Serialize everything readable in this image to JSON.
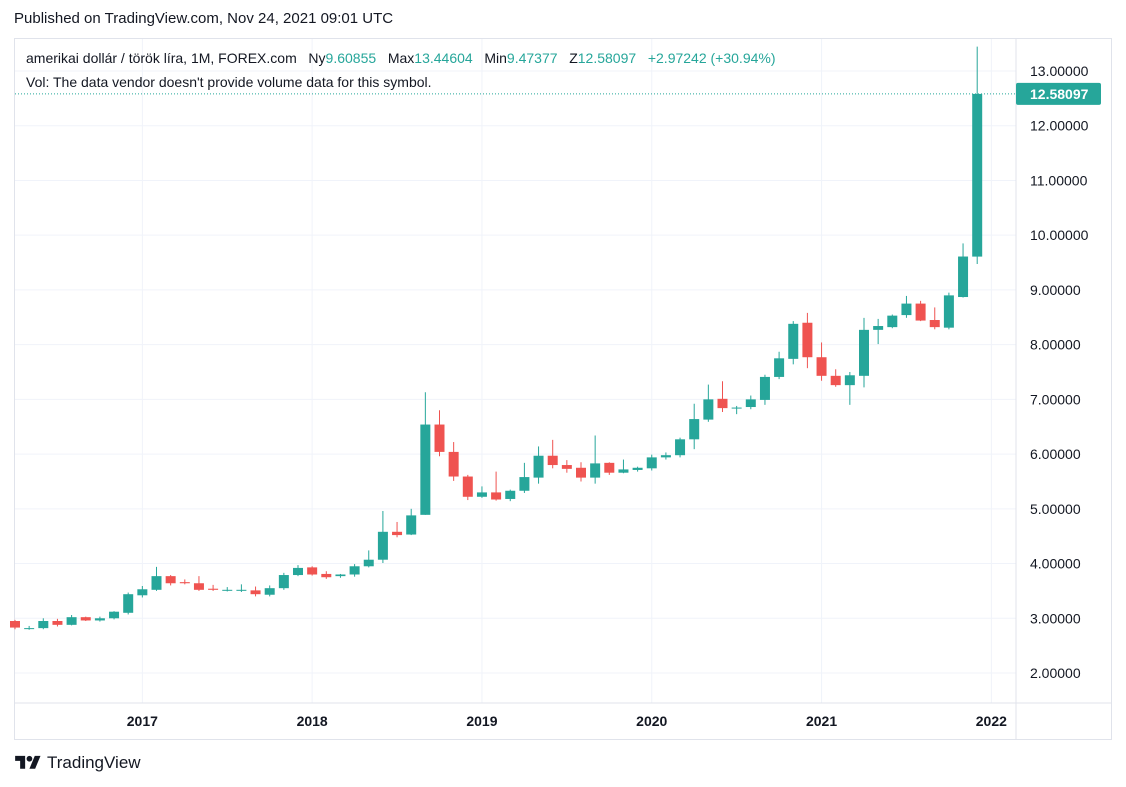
{
  "published": "Published on TradingView.com, Nov 24, 2021 09:01 UTC",
  "legend": {
    "symbol": "amerikai dollár / török líra, 1M, FOREX.com",
    "open_label": "Ny",
    "open_value": "9.60855",
    "high_label": "Max",
    "high_value": "13.44604",
    "low_label": "Min",
    "low_value": "9.47377",
    "close_label": "Z",
    "close_value": "12.58097",
    "change": "+2.97242 (+30.94%)"
  },
  "volume_note": "Vol: The data vendor doesn't provide volume data for this symbol.",
  "brand": "TradingView",
  "colors": {
    "up": "#26a69a",
    "down": "#ef5350",
    "grid": "#f0f3fa",
    "axis_text": "#131722",
    "price_line": "#26a69a"
  },
  "chart_data": {
    "type": "candlestick",
    "interval": "1M",
    "yaxis_ticks": [
      "2.00000",
      "3.00000",
      "4.00000",
      "5.00000",
      "6.00000",
      "7.00000",
      "8.00000",
      "9.00000",
      "10.00000",
      "11.00000",
      "12.00000",
      "13.00000"
    ],
    "xaxis_ticks": [
      "2017",
      "2018",
      "2019",
      "2020",
      "2021",
      "2022"
    ],
    "ylim": [
      1.5,
      13.75
    ],
    "last_price_label": "12.58097",
    "last_price": 12.58097,
    "x_start": "2016-04",
    "candles": [
      {
        "o": 2.95,
        "h": 2.97,
        "l": 2.8,
        "c": 2.83
      },
      {
        "o": 2.82,
        "h": 2.86,
        "l": 2.79,
        "c": 2.82
      },
      {
        "o": 2.82,
        "h": 3.0,
        "l": 2.8,
        "c": 2.95
      },
      {
        "o": 2.95,
        "h": 2.99,
        "l": 2.85,
        "c": 2.88
      },
      {
        "o": 2.88,
        "h": 3.06,
        "l": 2.87,
        "c": 3.02
      },
      {
        "o": 3.02,
        "h": 3.03,
        "l": 2.95,
        "c": 2.96
      },
      {
        "o": 2.96,
        "h": 3.03,
        "l": 2.94,
        "c": 3.0
      },
      {
        "o": 3.0,
        "h": 3.13,
        "l": 2.98,
        "c": 3.12
      },
      {
        "o": 3.1,
        "h": 3.47,
        "l": 3.07,
        "c": 3.44
      },
      {
        "o": 3.42,
        "h": 3.59,
        "l": 3.38,
        "c": 3.53
      },
      {
        "o": 3.52,
        "h": 3.94,
        "l": 3.5,
        "c": 3.77
      },
      {
        "o": 3.77,
        "h": 3.79,
        "l": 3.6,
        "c": 3.64
      },
      {
        "o": 3.66,
        "h": 3.71,
        "l": 3.62,
        "c": 3.64
      },
      {
        "o": 3.64,
        "h": 3.77,
        "l": 3.5,
        "c": 3.52
      },
      {
        "o": 3.54,
        "h": 3.61,
        "l": 3.5,
        "c": 3.52
      },
      {
        "o": 3.51,
        "h": 3.57,
        "l": 3.49,
        "c": 3.52
      },
      {
        "o": 3.52,
        "h": 3.62,
        "l": 3.48,
        "c": 3.52
      },
      {
        "o": 3.51,
        "h": 3.58,
        "l": 3.4,
        "c": 3.44
      },
      {
        "o": 3.43,
        "h": 3.6,
        "l": 3.4,
        "c": 3.55
      },
      {
        "o": 3.55,
        "h": 3.83,
        "l": 3.52,
        "c": 3.79
      },
      {
        "o": 3.79,
        "h": 3.97,
        "l": 3.77,
        "c": 3.92
      },
      {
        "o": 3.93,
        "h": 3.95,
        "l": 3.78,
        "c": 3.8
      },
      {
        "o": 3.81,
        "h": 3.86,
        "l": 3.72,
        "c": 3.75
      },
      {
        "o": 3.77,
        "h": 3.81,
        "l": 3.74,
        "c": 3.8
      },
      {
        "o": 3.8,
        "h": 3.99,
        "l": 3.76,
        "c": 3.95
      },
      {
        "o": 3.95,
        "h": 4.24,
        "l": 3.93,
        "c": 4.07
      },
      {
        "o": 4.07,
        "h": 4.96,
        "l": 4.01,
        "c": 4.58
      },
      {
        "o": 4.58,
        "h": 4.76,
        "l": 4.48,
        "c": 4.52
      },
      {
        "o": 4.53,
        "h": 5.0,
        "l": 4.52,
        "c": 4.88
      },
      {
        "o": 4.89,
        "h": 7.13,
        "l": 4.89,
        "c": 6.54
      },
      {
        "o": 6.54,
        "h": 6.8,
        "l": 5.96,
        "c": 6.04
      },
      {
        "o": 6.04,
        "h": 6.22,
        "l": 5.51,
        "c": 5.59
      },
      {
        "o": 5.59,
        "h": 5.62,
        "l": 5.16,
        "c": 5.22
      },
      {
        "o": 5.22,
        "h": 5.41,
        "l": 5.2,
        "c": 5.3
      },
      {
        "o": 5.3,
        "h": 5.68,
        "l": 5.15,
        "c": 5.17
      },
      {
        "o": 5.18,
        "h": 5.35,
        "l": 5.14,
        "c": 5.33
      },
      {
        "o": 5.33,
        "h": 5.84,
        "l": 5.29,
        "c": 5.58
      },
      {
        "o": 5.57,
        "h": 6.14,
        "l": 5.46,
        "c": 5.97
      },
      {
        "o": 5.97,
        "h": 6.26,
        "l": 5.74,
        "c": 5.8
      },
      {
        "o": 5.8,
        "h": 5.89,
        "l": 5.66,
        "c": 5.73
      },
      {
        "o": 5.75,
        "h": 5.85,
        "l": 5.5,
        "c": 5.57
      },
      {
        "o": 5.57,
        "h": 6.34,
        "l": 5.46,
        "c": 5.83
      },
      {
        "o": 5.84,
        "h": 5.85,
        "l": 5.62,
        "c": 5.66
      },
      {
        "o": 5.66,
        "h": 5.9,
        "l": 5.65,
        "c": 5.72
      },
      {
        "o": 5.71,
        "h": 5.77,
        "l": 5.68,
        "c": 5.75
      },
      {
        "o": 5.74,
        "h": 5.99,
        "l": 5.7,
        "c": 5.94
      },
      {
        "o": 5.94,
        "h": 6.03,
        "l": 5.9,
        "c": 5.98
      },
      {
        "o": 5.98,
        "h": 6.3,
        "l": 5.94,
        "c": 6.27
      },
      {
        "o": 6.27,
        "h": 6.92,
        "l": 6.09,
        "c": 6.64
      },
      {
        "o": 6.63,
        "h": 7.27,
        "l": 6.59,
        "c": 7.0
      },
      {
        "o": 7.01,
        "h": 7.33,
        "l": 6.77,
        "c": 6.84
      },
      {
        "o": 6.84,
        "h": 6.88,
        "l": 6.73,
        "c": 6.85
      },
      {
        "o": 6.86,
        "h": 7.07,
        "l": 6.82,
        "c": 7.0
      },
      {
        "o": 6.99,
        "h": 7.45,
        "l": 6.9,
        "c": 7.41
      },
      {
        "o": 7.41,
        "h": 7.87,
        "l": 7.37,
        "c": 7.75
      },
      {
        "o": 7.74,
        "h": 8.43,
        "l": 7.64,
        "c": 8.38
      },
      {
        "o": 8.4,
        "h": 8.58,
        "l": 7.57,
        "c": 7.77
      },
      {
        "o": 7.77,
        "h": 8.04,
        "l": 7.34,
        "c": 7.43
      },
      {
        "o": 7.43,
        "h": 7.55,
        "l": 7.23,
        "c": 7.26
      },
      {
        "o": 7.26,
        "h": 7.5,
        "l": 6.9,
        "c": 7.44
      },
      {
        "o": 7.43,
        "h": 8.49,
        "l": 7.22,
        "c": 8.27
      },
      {
        "o": 8.27,
        "h": 8.47,
        "l": 8.01,
        "c": 8.34
      },
      {
        "o": 8.32,
        "h": 8.55,
        "l": 8.3,
        "c": 8.53
      },
      {
        "o": 8.54,
        "h": 8.89,
        "l": 8.49,
        "c": 8.75
      },
      {
        "o": 8.75,
        "h": 8.8,
        "l": 8.43,
        "c": 8.44
      },
      {
        "o": 8.45,
        "h": 8.68,
        "l": 8.28,
        "c": 8.32
      },
      {
        "o": 8.31,
        "h": 8.95,
        "l": 8.28,
        "c": 8.9
      },
      {
        "o": 8.87,
        "h": 9.85,
        "l": 8.86,
        "c": 9.61
      },
      {
        "o": 9.60855,
        "h": 13.44604,
        "l": 9.47377,
        "c": 12.58097
      }
    ]
  }
}
